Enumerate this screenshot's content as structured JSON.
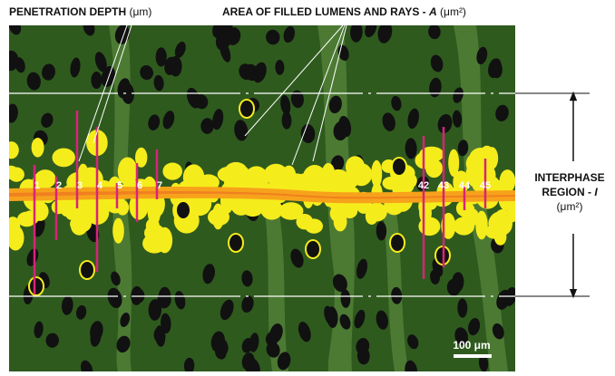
{
  "labels": {
    "penetration_depth": "PENETRATION DEPTH",
    "penetration_unit": "(μm)",
    "area": "AREA OF FILLED LUMENS AND RAYS - ",
    "area_symbol": "A",
    "area_unit": "(μm²)",
    "interphase_line1": "INTERPHASE",
    "interphase_line2": "REGION - ",
    "interphase_symbol": "I",
    "interphase_unit": "(μm²)",
    "scale_bar": "100 μm"
  },
  "markers": [
    "1",
    "2",
    "3",
    "4",
    "5",
    "6",
    "7",
    "42",
    "43",
    "44",
    "45"
  ]
}
